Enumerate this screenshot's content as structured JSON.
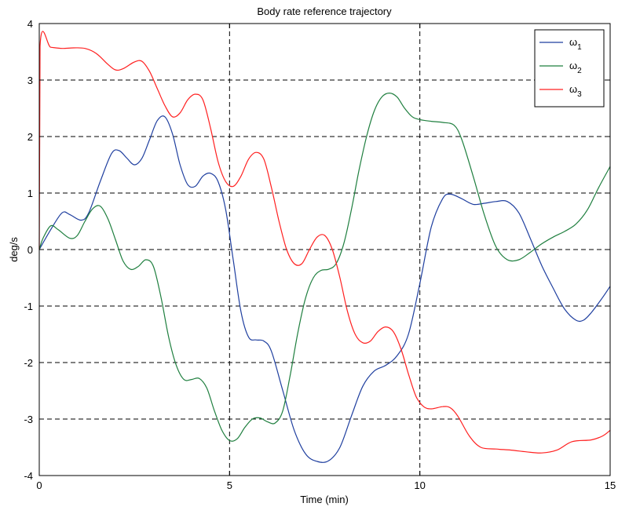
{
  "chart_data": {
    "type": "line",
    "title": "Body rate reference trajectory",
    "xlabel": "Time (min)",
    "ylabel": "deg/s",
    "xlim": [
      0,
      15
    ],
    "ylim": [
      -4,
      4
    ],
    "xticks": [
      0,
      5,
      10,
      15
    ],
    "yticks": [
      -4,
      -3,
      -2,
      -1,
      0,
      1,
      2,
      3,
      4
    ],
    "xtick_labels": [
      "0",
      "5",
      "10",
      "15"
    ],
    "ytick_labels": [
      "-4",
      "-3",
      "-2",
      "-1",
      "0",
      "1",
      "2",
      "3",
      "4"
    ],
    "grid": true,
    "grid_style": "dashed",
    "legend_position": "top-right",
    "series": [
      {
        "name": "ω1",
        "base": "ω",
        "sub": "1",
        "color": "#1f3f9f",
        "points": [
          [
            0,
            0
          ],
          [
            0.3,
            0.35
          ],
          [
            0.6,
            0.65
          ],
          [
            0.8,
            0.62
          ],
          [
            1.1,
            0.52
          ],
          [
            1.3,
            0.65
          ],
          [
            1.6,
            1.2
          ],
          [
            1.9,
            1.7
          ],
          [
            2.1,
            1.75
          ],
          [
            2.3,
            1.62
          ],
          [
            2.5,
            1.5
          ],
          [
            2.7,
            1.62
          ],
          [
            2.9,
            1.95
          ],
          [
            3.1,
            2.28
          ],
          [
            3.3,
            2.35
          ],
          [
            3.5,
            2.05
          ],
          [
            3.7,
            1.5
          ],
          [
            3.9,
            1.15
          ],
          [
            4.1,
            1.12
          ],
          [
            4.3,
            1.3
          ],
          [
            4.5,
            1.35
          ],
          [
            4.7,
            1.2
          ],
          [
            4.9,
            0.7
          ],
          [
            5.1,
            -0.2
          ],
          [
            5.3,
            -1.1
          ],
          [
            5.5,
            -1.55
          ],
          [
            5.7,
            -1.6
          ],
          [
            5.9,
            -1.62
          ],
          [
            6.1,
            -1.8
          ],
          [
            6.4,
            -2.5
          ],
          [
            6.7,
            -3.2
          ],
          [
            7.0,
            -3.62
          ],
          [
            7.3,
            -3.75
          ],
          [
            7.6,
            -3.74
          ],
          [
            7.9,
            -3.5
          ],
          [
            8.2,
            -2.95
          ],
          [
            8.5,
            -2.42
          ],
          [
            8.8,
            -2.15
          ],
          [
            9.1,
            -2.05
          ],
          [
            9.4,
            -1.88
          ],
          [
            9.7,
            -1.5
          ],
          [
            10.0,
            -0.6
          ],
          [
            10.3,
            0.4
          ],
          [
            10.6,
            0.9
          ],
          [
            10.8,
            0.98
          ],
          [
            11.1,
            0.9
          ],
          [
            11.4,
            0.8
          ],
          [
            11.7,
            0.82
          ],
          [
            12.0,
            0.85
          ],
          [
            12.3,
            0.85
          ],
          [
            12.6,
            0.65
          ],
          [
            12.9,
            0.2
          ],
          [
            13.2,
            -0.28
          ],
          [
            13.5,
            -0.68
          ],
          [
            13.8,
            -1.05
          ],
          [
            14.1,
            -1.25
          ],
          [
            14.3,
            -1.25
          ],
          [
            14.5,
            -1.12
          ],
          [
            14.8,
            -0.85
          ],
          [
            15,
            -0.65
          ]
        ]
      },
      {
        "name": "ω2",
        "base": "ω",
        "sub": "2",
        "color": "#1f7f3f",
        "points": [
          [
            0,
            0
          ],
          [
            0.1,
            0.2
          ],
          [
            0.3,
            0.42
          ],
          [
            0.5,
            0.35
          ],
          [
            0.8,
            0.2
          ],
          [
            1.0,
            0.25
          ],
          [
            1.2,
            0.5
          ],
          [
            1.4,
            0.72
          ],
          [
            1.6,
            0.77
          ],
          [
            1.8,
            0.55
          ],
          [
            2.0,
            0.18
          ],
          [
            2.2,
            -0.2
          ],
          [
            2.4,
            -0.35
          ],
          [
            2.6,
            -0.3
          ],
          [
            2.8,
            -0.18
          ],
          [
            3.0,
            -0.3
          ],
          [
            3.2,
            -0.85
          ],
          [
            3.4,
            -1.55
          ],
          [
            3.6,
            -2.05
          ],
          [
            3.8,
            -2.3
          ],
          [
            4.0,
            -2.3
          ],
          [
            4.2,
            -2.28
          ],
          [
            4.4,
            -2.45
          ],
          [
            4.6,
            -2.85
          ],
          [
            4.8,
            -3.2
          ],
          [
            5.0,
            -3.38
          ],
          [
            5.2,
            -3.35
          ],
          [
            5.4,
            -3.15
          ],
          [
            5.6,
            -3.0
          ],
          [
            5.8,
            -2.98
          ],
          [
            6.0,
            -3.05
          ],
          [
            6.2,
            -3.07
          ],
          [
            6.4,
            -2.85
          ],
          [
            6.6,
            -2.2
          ],
          [
            6.8,
            -1.45
          ],
          [
            7.0,
            -0.85
          ],
          [
            7.2,
            -0.5
          ],
          [
            7.4,
            -0.37
          ],
          [
            7.6,
            -0.35
          ],
          [
            7.8,
            -0.25
          ],
          [
            8.0,
            0.1
          ],
          [
            8.2,
            0.7
          ],
          [
            8.4,
            1.4
          ],
          [
            8.6,
            2.0
          ],
          [
            8.8,
            2.45
          ],
          [
            9.0,
            2.7
          ],
          [
            9.2,
            2.77
          ],
          [
            9.4,
            2.7
          ],
          [
            9.6,
            2.5
          ],
          [
            9.8,
            2.35
          ],
          [
            10.0,
            2.3
          ],
          [
            10.3,
            2.27
          ],
          [
            10.6,
            2.25
          ],
          [
            10.9,
            2.2
          ],
          [
            11.1,
            1.95
          ],
          [
            11.4,
            1.3
          ],
          [
            11.7,
            0.6
          ],
          [
            12.0,
            0.05
          ],
          [
            12.3,
            -0.18
          ],
          [
            12.6,
            -0.18
          ],
          [
            12.9,
            -0.05
          ],
          [
            13.2,
            0.1
          ],
          [
            13.5,
            0.22
          ],
          [
            13.8,
            0.32
          ],
          [
            14.1,
            0.45
          ],
          [
            14.4,
            0.7
          ],
          [
            14.7,
            1.1
          ],
          [
            15,
            1.47
          ]
        ]
      },
      {
        "name": "ω3",
        "base": "ω",
        "sub": "3",
        "color": "#ff2020",
        "points": [
          [
            0,
            0
          ],
          [
            0.02,
            3.6
          ],
          [
            0.3,
            3.58
          ],
          [
            0.6,
            3.56
          ],
          [
            0.9,
            3.57
          ],
          [
            1.2,
            3.56
          ],
          [
            1.5,
            3.47
          ],
          [
            1.8,
            3.28
          ],
          [
            2.0,
            3.18
          ],
          [
            2.2,
            3.2
          ],
          [
            2.5,
            3.32
          ],
          [
            2.7,
            3.33
          ],
          [
            2.9,
            3.15
          ],
          [
            3.1,
            2.85
          ],
          [
            3.3,
            2.55
          ],
          [
            3.5,
            2.35
          ],
          [
            3.7,
            2.42
          ],
          [
            3.9,
            2.65
          ],
          [
            4.1,
            2.75
          ],
          [
            4.3,
            2.65
          ],
          [
            4.5,
            2.15
          ],
          [
            4.7,
            1.55
          ],
          [
            4.9,
            1.2
          ],
          [
            5.1,
            1.12
          ],
          [
            5.3,
            1.3
          ],
          [
            5.5,
            1.6
          ],
          [
            5.7,
            1.72
          ],
          [
            5.9,
            1.6
          ],
          [
            6.1,
            1.1
          ],
          [
            6.3,
            0.5
          ],
          [
            6.5,
            0.0
          ],
          [
            6.7,
            -0.25
          ],
          [
            6.9,
            -0.25
          ],
          [
            7.1,
            0.0
          ],
          [
            7.3,
            0.22
          ],
          [
            7.5,
            0.25
          ],
          [
            7.7,
            0.0
          ],
          [
            7.9,
            -0.5
          ],
          [
            8.1,
            -1.1
          ],
          [
            8.3,
            -1.5
          ],
          [
            8.5,
            -1.65
          ],
          [
            8.7,
            -1.62
          ],
          [
            8.9,
            -1.45
          ],
          [
            9.1,
            -1.37
          ],
          [
            9.3,
            -1.45
          ],
          [
            9.5,
            -1.75
          ],
          [
            9.7,
            -2.2
          ],
          [
            9.9,
            -2.6
          ],
          [
            10.1,
            -2.78
          ],
          [
            10.3,
            -2.82
          ],
          [
            10.6,
            -2.78
          ],
          [
            10.8,
            -2.8
          ],
          [
            11.0,
            -2.95
          ],
          [
            11.3,
            -3.3
          ],
          [
            11.6,
            -3.5
          ],
          [
            12.0,
            -3.53
          ],
          [
            12.4,
            -3.55
          ],
          [
            12.8,
            -3.58
          ],
          [
            13.2,
            -3.6
          ],
          [
            13.6,
            -3.55
          ],
          [
            14.0,
            -3.4
          ],
          [
            14.5,
            -3.37
          ],
          [
            14.8,
            -3.3
          ],
          [
            15,
            -3.2
          ]
        ]
      }
    ]
  }
}
